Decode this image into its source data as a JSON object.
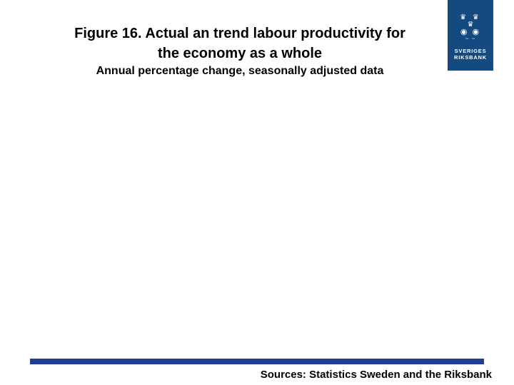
{
  "slide": {
    "title_line1": "Figure 16. Actual an trend labour productivity for",
    "title_line2": "the economy as a whole",
    "subtitle": "Annual percentage change, seasonally adjusted data",
    "source_note": "Sources: Statistics Sweden and the Riksbank"
  },
  "logo": {
    "organization_line1": "SVERIGES",
    "organization_line2": "RIKSBANK",
    "crown_row1": "♛ ♛",
    "crown_row2": "♛",
    "heads_row": "◉ ◉",
    "swirls_row": "~ ~",
    "background_color": "#154A80"
  },
  "colors": {
    "background": "#FFFFFF",
    "text": "#000000",
    "accent_bar_blue": "#213E92",
    "logo_blue": "#154A80"
  }
}
